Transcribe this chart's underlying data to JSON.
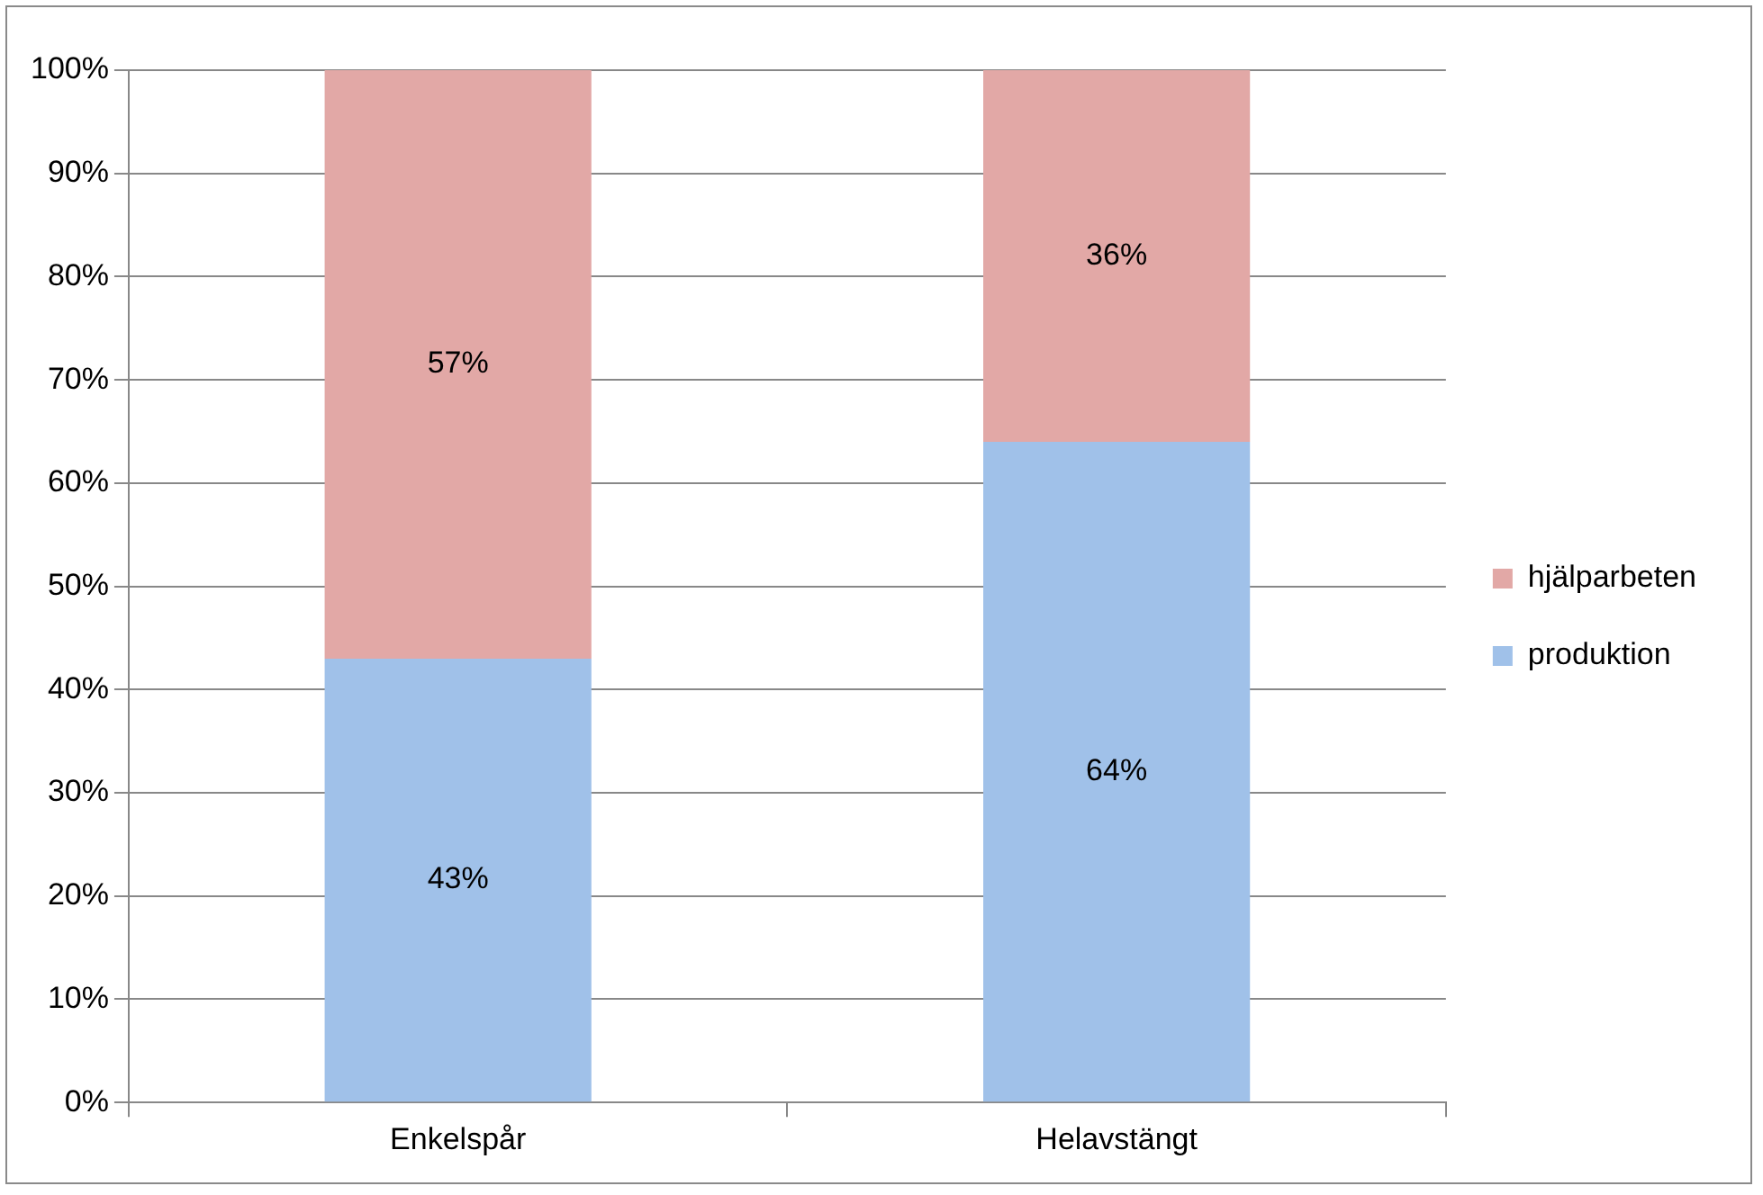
{
  "chart_data": {
    "type": "bar",
    "stacked": true,
    "categories": [
      "Enkelspår",
      "Helavstängt"
    ],
    "series": [
      {
        "name": "produktion",
        "color": "#a0c1e9",
        "values": [
          43,
          64
        ],
        "value_labels": [
          "43%",
          "64%"
        ]
      },
      {
        "name": "hjälparbeten",
        "color": "#e2a8a6",
        "values": [
          57,
          36
        ],
        "value_labels": [
          "57%",
          "36%"
        ]
      }
    ],
    "ylim": [
      0,
      100
    ],
    "yticks": [
      {
        "value": 0,
        "label": "0%"
      },
      {
        "value": 10,
        "label": "10%"
      },
      {
        "value": 20,
        "label": "20%"
      },
      {
        "value": 30,
        "label": "30%"
      },
      {
        "value": 40,
        "label": "40%"
      },
      {
        "value": 50,
        "label": "50%"
      },
      {
        "value": 60,
        "label": "60%"
      },
      {
        "value": 70,
        "label": "70%"
      },
      {
        "value": 80,
        "label": "80%"
      },
      {
        "value": 90,
        "label": "90%"
      },
      {
        "value": 100,
        "label": "100%"
      }
    ],
    "grid": "y",
    "legend": "right"
  }
}
